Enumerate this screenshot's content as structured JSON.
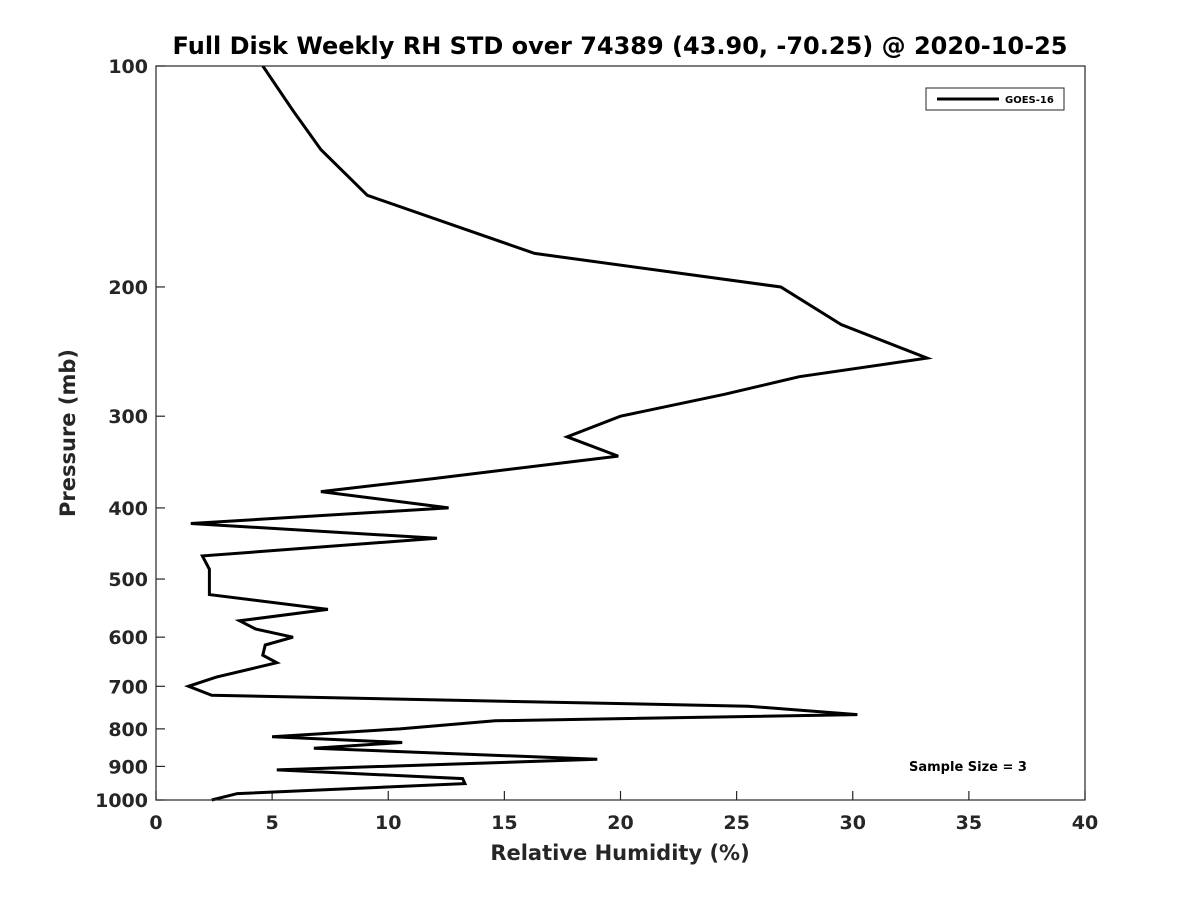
{
  "chart_data": {
    "type": "line",
    "title": "Full Disk Weekly RH STD over 74389 (43.90, -70.25) @ 2020-10-25",
    "xlabel": "Relative Humidity (%)",
    "ylabel": "Pressure (mb)",
    "xlim": [
      0,
      40
    ],
    "ylim": [
      100,
      1000
    ],
    "y_scale": "log",
    "y_reversed": true,
    "grid": false,
    "legend_position": "top-right",
    "xticks": [
      0,
      5,
      10,
      15,
      20,
      25,
      30,
      35,
      40
    ],
    "xtick_labels": [
      "0",
      "5",
      "10",
      "15",
      "20",
      "25",
      "30",
      "35",
      "40"
    ],
    "yticks": [
      100,
      200,
      300,
      400,
      500,
      600,
      700,
      800,
      900,
      1000
    ],
    "ytick_labels": [
      "100",
      "200",
      "300",
      "400",
      "500",
      "600",
      "700",
      "800",
      "900",
      "1000"
    ],
    "series": [
      {
        "name": "GOES-16",
        "color": "#000000",
        "x": [
          4.6,
          5.9,
          7.1,
          9.1,
          16.3,
          26.9,
          29.5,
          33.2,
          27.7,
          24.5,
          20.0,
          17.7,
          19.9,
          11.9,
          7.1,
          12.6,
          1.5,
          12.1,
          2.0,
          2.3,
          2.3,
          2.3,
          7.4,
          3.6,
          4.3,
          5.9,
          4.7,
          4.6,
          5.2,
          2.6,
          1.4,
          2.4,
          25.5,
          30.2,
          14.6,
          10.5,
          5.0,
          10.6,
          6.8,
          19.0,
          5.2,
          13.2,
          13.3,
          3.5,
          2.4
        ],
        "y": [
          100,
          115,
          130,
          150,
          180,
          200,
          225,
          250,
          265,
          280,
          300,
          320,
          340,
          365,
          380,
          400,
          420,
          440,
          465,
          485,
          500,
          525,
          550,
          570,
          585,
          600,
          615,
          635,
          650,
          680,
          700,
          720,
          745,
          765,
          780,
          800,
          820,
          835,
          850,
          880,
          910,
          935,
          950,
          980,
          1000
        ]
      }
    ],
    "annotations": [
      {
        "text": "Sample Size = 3"
      }
    ]
  }
}
